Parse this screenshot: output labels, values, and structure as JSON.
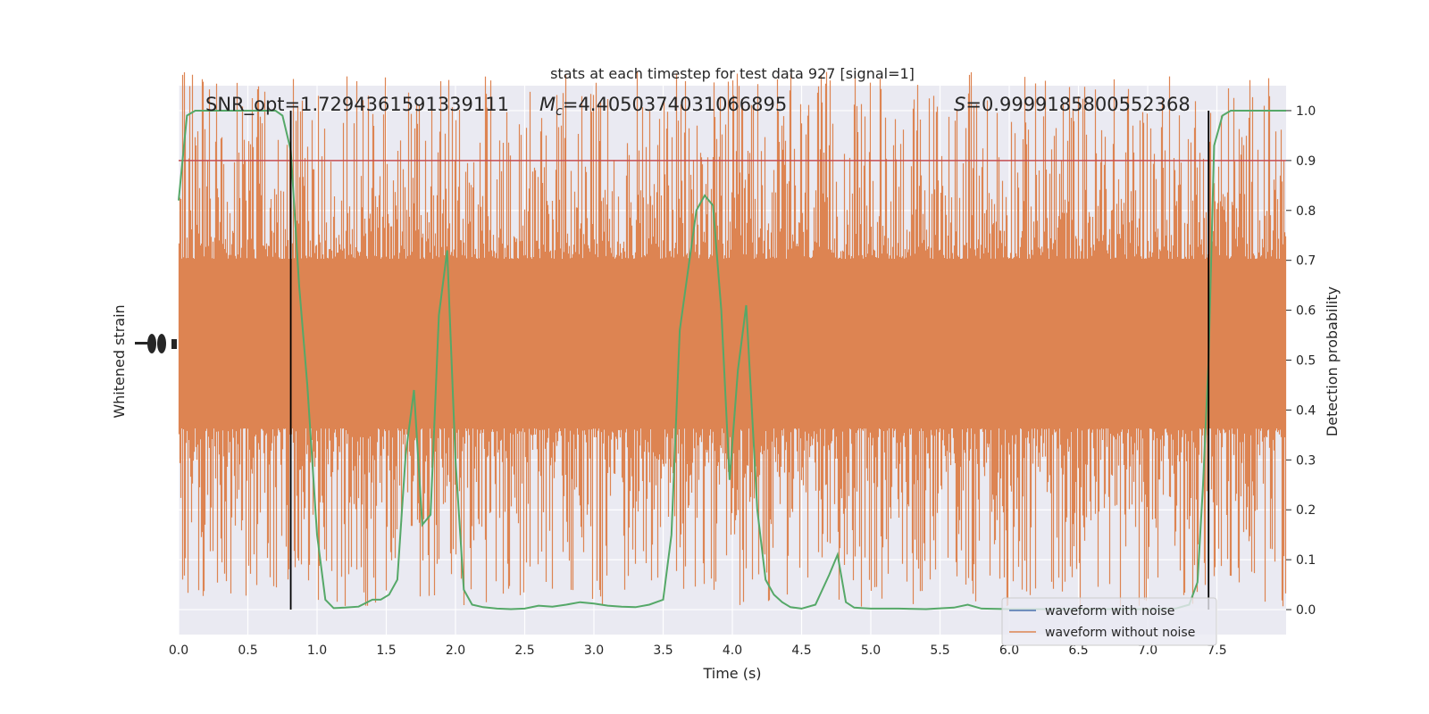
{
  "chart_data": {
    "type": "line",
    "title": "stats at each timestep for test data 927 [signal=1]",
    "xlabel": "Time (s)",
    "ylabel_left": "Whitened strain",
    "ylabel_right": "Detection probability",
    "xlim": [
      0.0,
      8.0
    ],
    "ylim_right": [
      -0.05,
      1.05
    ],
    "x_ticks": [
      "0.0",
      "0.5",
      "1.0",
      "1.5",
      "2.0",
      "2.5",
      "3.0",
      "3.5",
      "4.0",
      "4.5",
      "5.0",
      "5.5",
      "6.0",
      "6.5",
      "7.0",
      "7.5"
    ],
    "y_ticks_right": [
      "0.0",
      "0.1",
      "0.2",
      "0.3",
      "0.4",
      "0.5",
      "0.6",
      "0.7",
      "0.8",
      "0.9",
      "1.0"
    ],
    "grid": true,
    "legend_position": "lower-right",
    "annotations": {
      "snr": "SNR_opt=1.7294361591339111",
      "mc_symbol": "M",
      "mc_sub": "c",
      "mc_value": "=4.4050374031066895",
      "s_symbol": "S",
      "s_value": "=0.9999185800552368"
    },
    "threshold": 0.9,
    "vertical_markers": [
      0.81,
      7.44
    ],
    "series": [
      {
        "name": "waveform with noise",
        "color": "#4c72b0"
      },
      {
        "name": "waveform without noise",
        "color": "#dd8452"
      }
    ],
    "probability": {
      "color": "#55a868",
      "x": [
        0.0,
        0.06,
        0.12,
        0.2,
        0.3,
        0.4,
        0.5,
        0.6,
        0.7,
        0.75,
        0.81,
        0.87,
        0.93,
        1.0,
        1.06,
        1.12,
        1.2,
        1.3,
        1.4,
        1.46,
        1.52,
        1.58,
        1.64,
        1.7,
        1.76,
        1.82,
        1.88,
        1.94,
        2.0,
        2.06,
        2.12,
        2.2,
        2.3,
        2.4,
        2.5,
        2.6,
        2.7,
        2.8,
        2.9,
        3.0,
        3.1,
        3.2,
        3.3,
        3.4,
        3.5,
        3.56,
        3.62,
        3.68,
        3.74,
        3.8,
        3.86,
        3.92,
        3.98,
        4.04,
        4.1,
        4.18,
        4.24,
        4.3,
        4.36,
        4.42,
        4.5,
        4.6,
        4.7,
        4.76,
        4.82,
        4.88,
        4.94,
        5.0,
        5.2,
        5.4,
        5.6,
        5.7,
        5.8,
        6.0,
        6.5,
        7.0,
        7.2,
        7.3,
        7.36,
        7.4,
        7.44,
        7.48,
        7.54,
        7.6,
        7.66,
        7.8,
        8.0
      ],
      "y": [
        0.82,
        0.99,
        1.0,
        1.0,
        1.0,
        1.0,
        1.0,
        1.0,
        1.0,
        0.99,
        0.92,
        0.65,
        0.45,
        0.15,
        0.02,
        0.003,
        0.004,
        0.006,
        0.02,
        0.02,
        0.03,
        0.06,
        0.31,
        0.44,
        0.17,
        0.19,
        0.59,
        0.72,
        0.3,
        0.04,
        0.01,
        0.005,
        0.002,
        0.001,
        0.002,
        0.008,
        0.006,
        0.01,
        0.015,
        0.012,
        0.008,
        0.006,
        0.005,
        0.01,
        0.02,
        0.15,
        0.56,
        0.68,
        0.8,
        0.83,
        0.81,
        0.6,
        0.26,
        0.48,
        0.61,
        0.2,
        0.06,
        0.03,
        0.015,
        0.005,
        0.002,
        0.01,
        0.07,
        0.11,
        0.015,
        0.004,
        0.003,
        0.002,
        0.002,
        0.001,
        0.004,
        0.01,
        0.002,
        0.001,
        0.001,
        0.001,
        0.002,
        0.01,
        0.055,
        0.25,
        0.5,
        0.93,
        0.99,
        1.0,
        1.0,
        1.0,
        1.0
      ]
    }
  }
}
